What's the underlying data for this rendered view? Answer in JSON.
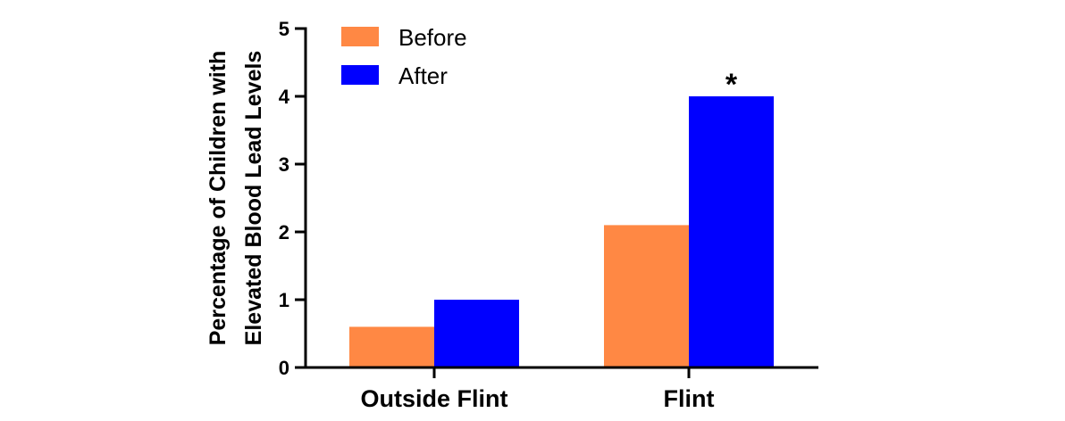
{
  "chart_data": {
    "type": "bar",
    "categories": [
      "Outside Flint",
      "Flint"
    ],
    "series": [
      {
        "name": "Before",
        "values": [
          0.6,
          2.1
        ],
        "color": "#FF8844"
      },
      {
        "name": "After",
        "values": [
          1.0,
          4.0
        ],
        "color": "#0000FF"
      }
    ],
    "title": "",
    "xlabel": "",
    "ylabel": [
      "Percentage of Children with",
      "Elevated Blood Lead Levels"
    ],
    "ylim": [
      0,
      5
    ],
    "yticks": [
      0,
      1,
      2,
      3,
      4,
      5
    ],
    "legend_position": "top-left",
    "grid": false,
    "annotations": [
      {
        "text": "*",
        "category": "Flint",
        "series": "After"
      }
    ]
  }
}
